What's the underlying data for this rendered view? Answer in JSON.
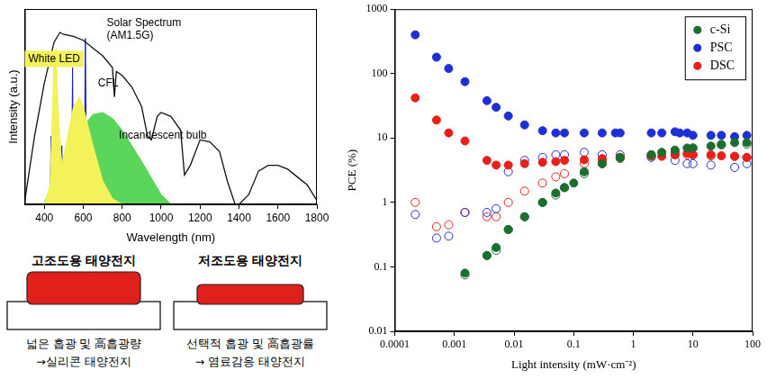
{
  "chart_data": [
    {
      "type": "line",
      "x_label": "Wavelength (nm)",
      "y_label": "Intensity (a.u.)",
      "xlim": [
        300,
        1800
      ],
      "xticks": [
        400,
        600,
        800,
        1000,
        1200,
        1400,
        1600,
        1800
      ],
      "ylim": [
        0,
        1
      ],
      "tick_labels": "x",
      "grid": false,
      "series": [
        {
          "name": "Solar Spectrum (AM1.5G)",
          "type": "line",
          "color": "#111111",
          "x": [
            300,
            350,
            400,
            450,
            480,
            500,
            550,
            600,
            650,
            700,
            750,
            760,
            770,
            800,
            850,
            900,
            930,
            950,
            980,
            1000,
            1050,
            1100,
            1120,
            1150,
            1200,
            1250,
            1300,
            1340,
            1380,
            1400,
            1450,
            1500,
            1550,
            1600,
            1650,
            1700,
            1750,
            1800
          ],
          "values": [
            0.02,
            0.35,
            0.62,
            0.83,
            0.88,
            0.87,
            0.86,
            0.84,
            0.8,
            0.76,
            0.7,
            0.55,
            0.68,
            0.66,
            0.6,
            0.5,
            0.35,
            0.33,
            0.45,
            0.47,
            0.45,
            0.38,
            0.15,
            0.2,
            0.33,
            0.32,
            0.27,
            0.12,
            0.0,
            0.0,
            0.05,
            0.17,
            0.2,
            0.2,
            0.18,
            0.14,
            0.1,
            0.02
          ]
        },
        {
          "name": "White LED",
          "type": "area",
          "color": "#f4f25a",
          "x": [
            400,
            430,
            450,
            460,
            470,
            490,
            510,
            550,
            580,
            600,
            650,
            700,
            750,
            800
          ],
          "values": [
            0,
            0.1,
            0.75,
            0.8,
            0.5,
            0.2,
            0.3,
            0.5,
            0.55,
            0.5,
            0.3,
            0.12,
            0.03,
            0
          ]
        },
        {
          "name": "CFL",
          "type": "area",
          "color": "#1a1ad0",
          "x": [
            400,
            430,
            435,
            440,
            480,
            485,
            490,
            495,
            540,
            545,
            550,
            580,
            605,
            611,
            617,
            630,
            700,
            720
          ],
          "values": [
            0,
            0.05,
            0.35,
            0.05,
            0.05,
            0.08,
            0.3,
            0.06,
            0.05,
            0.7,
            0.05,
            0.1,
            0.1,
            0.85,
            0.05,
            0.08,
            0.02,
            0
          ]
        },
        {
          "name": "Incandescent bulb",
          "type": "area",
          "color": "#5ad65a",
          "x": [
            400,
            500,
            550,
            600,
            650,
            700,
            750,
            800,
            900,
            1000,
            1050
          ],
          "values": [
            0.02,
            0.1,
            0.25,
            0.4,
            0.46,
            0.47,
            0.44,
            0.38,
            0.22,
            0.05,
            0
          ]
        }
      ]
    },
    {
      "type": "scatter",
      "x_label": "Light intensity (mW·cm⁻²)",
      "y_label": "PCE (%)",
      "log": true,
      "xlim": [
        0.0001,
        100
      ],
      "xticks": [
        0.0001,
        0.001,
        0.01,
        0.1,
        1,
        10,
        100
      ],
      "ylim": [
        0.01,
        1000
      ],
      "yticks": [
        0.01,
        0.1,
        1,
        10,
        100,
        1000
      ],
      "grid": false,
      "legend": "upper right",
      "series": [
        {
          "name": "c-Si",
          "color": "#1b6e2e",
          "marker": "circle",
          "x": [
            0.0015,
            0.0035,
            0.005,
            0.008,
            0.015,
            0.03,
            0.05,
            0.07,
            0.1,
            0.15,
            0.3,
            0.6,
            2,
            3,
            5,
            8,
            10,
            20,
            30,
            50,
            80
          ],
          "values": [
            0.08,
            0.15,
            0.2,
            0.38,
            0.6,
            1,
            1.4,
            1.7,
            2,
            3,
            4,
            5,
            5.5,
            6,
            6.5,
            7,
            7,
            7.5,
            8,
            8.5,
            8.5
          ]
        },
        {
          "name": "PSC",
          "color": "#1f2fd6",
          "marker": "circle",
          "x": [
            0.00022,
            0.0005,
            0.0008,
            0.0015,
            0.0035,
            0.005,
            0.008,
            0.015,
            0.03,
            0.05,
            0.07,
            0.15,
            0.3,
            0.5,
            0.6,
            2,
            3,
            5,
            6,
            8,
            10,
            20,
            30,
            50,
            80
          ],
          "values": [
            400,
            180,
            120,
            75,
            38,
            30,
            22,
            16,
            13,
            12,
            12,
            12,
            12,
            12,
            12,
            12,
            12,
            12.5,
            12,
            12,
            11,
            11,
            11,
            10.5,
            11
          ]
        },
        {
          "name": "DSC",
          "color": "#e8201a",
          "marker": "circle",
          "x": [
            0.00022,
            0.0005,
            0.0008,
            0.0015,
            0.0035,
            0.005,
            0.008,
            0.015,
            0.03,
            0.05,
            0.07,
            0.15,
            0.3,
            0.6,
            2,
            3,
            5,
            8,
            10,
            20,
            30,
            50,
            80
          ],
          "values": [
            42,
            19,
            12,
            9,
            4.5,
            3.8,
            3.8,
            4,
            4.2,
            4.3,
            4.5,
            4.6,
            4.8,
            5,
            5.3,
            5.2,
            5.5,
            5.8,
            5.5,
            5.5,
            5.3,
            5.2,
            5
          ]
        },
        {
          "color": "#1b6e2e",
          "marker": "open_circle",
          "x": [
            0.0015,
            0.0035,
            0.005,
            0.008,
            0.015,
            0.03,
            0.05,
            0.07,
            0.15,
            0.3,
            0.6,
            2,
            5,
            10,
            30,
            80
          ],
          "values": [
            0.075,
            0.15,
            0.18,
            0.38,
            0.6,
            1,
            1.3,
            1.7,
            2.8,
            4,
            4.8,
            5.5,
            6,
            7,
            7.8,
            8
          ]
        },
        {
          "color": "#1f2fd6",
          "marker": "open_circle",
          "x": [
            0.00022,
            0.0005,
            0.0008,
            0.0015,
            0.0035,
            0.005,
            0.008,
            0.015,
            0.03,
            0.05,
            0.07,
            0.15,
            0.3,
            0.6,
            2,
            5,
            8,
            10,
            20,
            50,
            80
          ],
          "values": [
            0.65,
            0.28,
            0.3,
            0.7,
            0.7,
            0.8,
            3,
            4.5,
            5,
            5.5,
            5.5,
            6,
            5.5,
            5.5,
            5,
            4.5,
            4,
            4,
            3.8,
            3.5,
            4
          ]
        },
        {
          "color": "#e8201a",
          "marker": "open_circle",
          "x": [
            0.00022,
            0.0005,
            0.0008,
            0.0015,
            0.0035,
            0.005,
            0.008,
            0.015,
            0.03,
            0.05,
            0.07,
            0.15,
            0.3,
            0.6,
            2,
            5,
            8,
            10,
            20,
            50,
            80
          ],
          "values": [
            1,
            0.42,
            0.45,
            0.7,
            0.6,
            0.6,
            1,
            1.5,
            2,
            2.5,
            2.8,
            4,
            4.5,
            5,
            5.2,
            5.5,
            5.5,
            5.5,
            5.3,
            5.2,
            5
          ]
        }
      ]
    }
  ],
  "diagram": {
    "panels": [
      {
        "title": "고조도용 태양전지",
        "lines": [
          "넓은 흡광 및 高흡광량",
          "→실리콘 태양전지"
        ]
      },
      {
        "title": "저조도용 태양전지",
        "lines": [
          "선택적 흡광 및 高흡광률",
          "→ 염료감응 태양전지"
        ]
      }
    ]
  }
}
